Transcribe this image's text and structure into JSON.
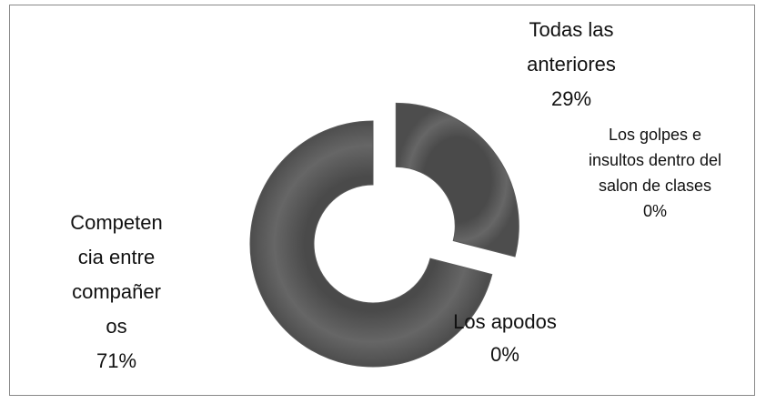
{
  "chart_data": {
    "type": "donut",
    "categories": [
      "Todas las anteriores",
      "Los golpes e insultos dentro del salon de clases",
      "Los apodos",
      "Competencia entre compañeros"
    ],
    "values": [
      29,
      0,
      0,
      71
    ],
    "value_labels": [
      "29%",
      "0%",
      "0%",
      "71%"
    ],
    "color": "#5a5a5a",
    "exploded": [
      0
    ]
  }
}
